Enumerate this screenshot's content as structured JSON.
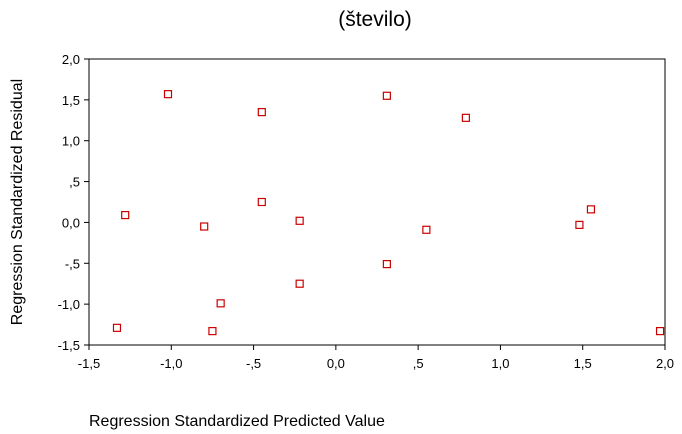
{
  "chart_data": {
    "type": "scatter",
    "title": "(število)",
    "xlabel": "Regression Standardized Predicted Value",
    "ylabel": "Regression Standardized Residual",
    "xlim": [
      -1.5,
      2.0
    ],
    "ylim": [
      -1.5,
      2.0
    ],
    "x_ticks": [
      -1.5,
      -1.0,
      -0.5,
      0.0,
      0.5,
      1.0,
      1.5,
      2.0
    ],
    "x_tick_labels": [
      "-1,5",
      "-1,0",
      "-,5",
      "0,0",
      ",5",
      "1,0",
      "1,5",
      "2,0"
    ],
    "y_ticks": [
      2.0,
      1.5,
      1.0,
      0.5,
      0.0,
      -0.5,
      -1.0,
      -1.5
    ],
    "y_tick_labels": [
      "2,0",
      "1,5",
      "1,0",
      ",5",
      "0,0",
      "-,5",
      "-1,0",
      "-1,5"
    ],
    "grid": false,
    "marker_color": "#cc0000",
    "points": [
      {
        "x": -1.02,
        "y": 1.57
      },
      {
        "x": -0.45,
        "y": 1.35
      },
      {
        "x": 0.31,
        "y": 1.55
      },
      {
        "x": 0.79,
        "y": 1.28
      },
      {
        "x": -1.28,
        "y": 0.09
      },
      {
        "x": -0.45,
        "y": 0.25
      },
      {
        "x": -0.8,
        "y": -0.05
      },
      {
        "x": -0.22,
        "y": 0.02
      },
      {
        "x": 0.55,
        "y": -0.09
      },
      {
        "x": 1.48,
        "y": -0.03
      },
      {
        "x": 1.55,
        "y": 0.16
      },
      {
        "x": 0.31,
        "y": -0.51
      },
      {
        "x": -0.22,
        "y": -0.75
      },
      {
        "x": -0.7,
        "y": -0.99
      },
      {
        "x": -1.33,
        "y": -1.29
      },
      {
        "x": -0.75,
        "y": -1.33
      },
      {
        "x": 1.97,
        "y": -1.33
      }
    ]
  }
}
